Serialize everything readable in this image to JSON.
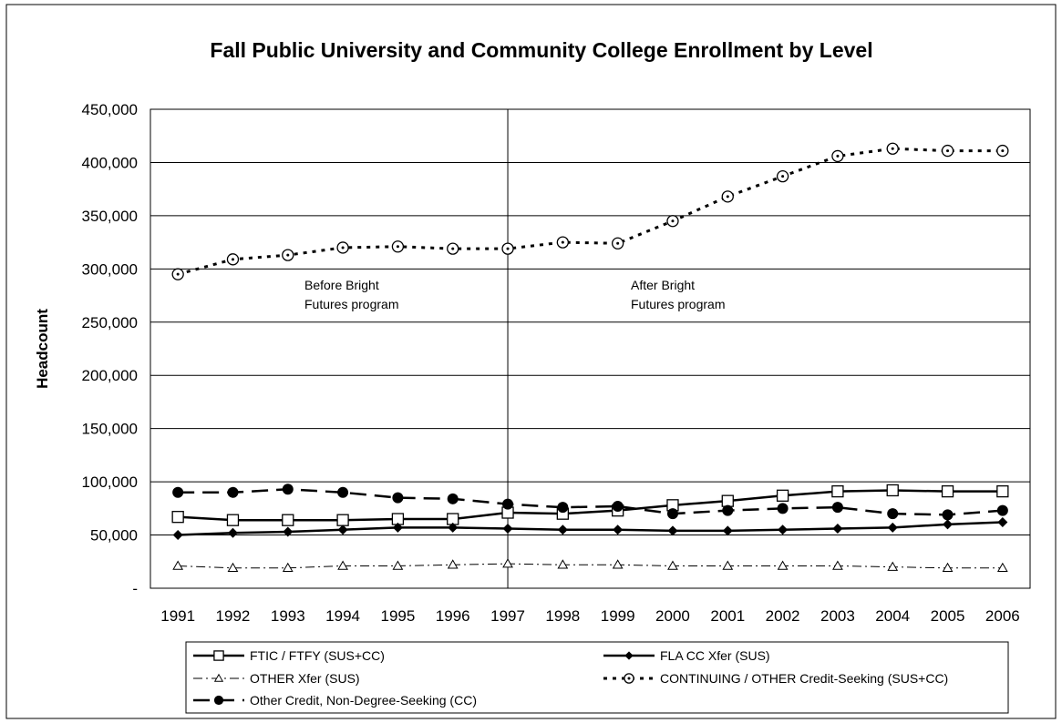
{
  "chart_data": {
    "type": "line",
    "title": "Fall Public University and Community College Enrollment by Level",
    "ylabel": "Headcount",
    "xlabel": "",
    "ylim": [
      0,
      450000
    ],
    "yticks": [
      "-",
      "50,000",
      "100,000",
      "150,000",
      "200,000",
      "250,000",
      "300,000",
      "350,000",
      "400,000",
      "450,000"
    ],
    "categories": [
      "1991",
      "1992",
      "1993",
      "1994",
      "1995",
      "1996",
      "1997",
      "1998",
      "1999",
      "2000",
      "2001",
      "2002",
      "2003",
      "2004",
      "2005",
      "2006"
    ],
    "grid": "horizontal",
    "legend_position": "bottom",
    "series": [
      {
        "name": "FTIC / FTFY (SUS+CC)",
        "color": "#000000",
        "marker": "square-open",
        "line": "solid",
        "values": [
          67000,
          64000,
          64000,
          64000,
          65000,
          65000,
          71000,
          70000,
          73000,
          78000,
          82000,
          87000,
          91000,
          92000,
          91000,
          91000
        ]
      },
      {
        "name": "FLA CC Xfer (SUS)",
        "color": "#000000",
        "marker": "diamond-filled",
        "line": "solid",
        "values": [
          50000,
          52000,
          53000,
          55000,
          57000,
          57000,
          56000,
          55000,
          55000,
          54000,
          54000,
          55000,
          56000,
          57000,
          60000,
          62000
        ]
      },
      {
        "name": "OTHER Xfer (SUS)",
        "color": "#000000",
        "marker": "triangle-open",
        "line": "dash-dot",
        "values": [
          21000,
          19000,
          19000,
          21000,
          21000,
          22000,
          23000,
          22000,
          22000,
          21000,
          21000,
          21000,
          21000,
          20000,
          19000,
          19000
        ]
      },
      {
        "name": "CONTINUING / OTHER Credit-Seeking (SUS+CC)",
        "color": "#000000",
        "marker": "circle-dot",
        "line": "dotted",
        "values": [
          295000,
          309000,
          313000,
          320000,
          321000,
          319000,
          319000,
          325000,
          324000,
          345000,
          368000,
          387000,
          406000,
          413000,
          411000,
          411000
        ]
      },
      {
        "name": "Other Credit, Non-Degree-Seeking (CC)",
        "color": "#000000",
        "marker": "circle-filled",
        "line": "long-dash",
        "values": [
          90000,
          90000,
          93000,
          90000,
          85000,
          84000,
          79000,
          76000,
          77000,
          70000,
          73000,
          75000,
          76000,
          70000,
          69000,
          73000
        ]
      }
    ],
    "annotations": [
      {
        "text_lines": [
          "Before Bright",
          "Futures program"
        ]
      },
      {
        "text_lines": [
          "After Bright",
          "Futures program"
        ]
      }
    ],
    "divider_at": "1997"
  }
}
